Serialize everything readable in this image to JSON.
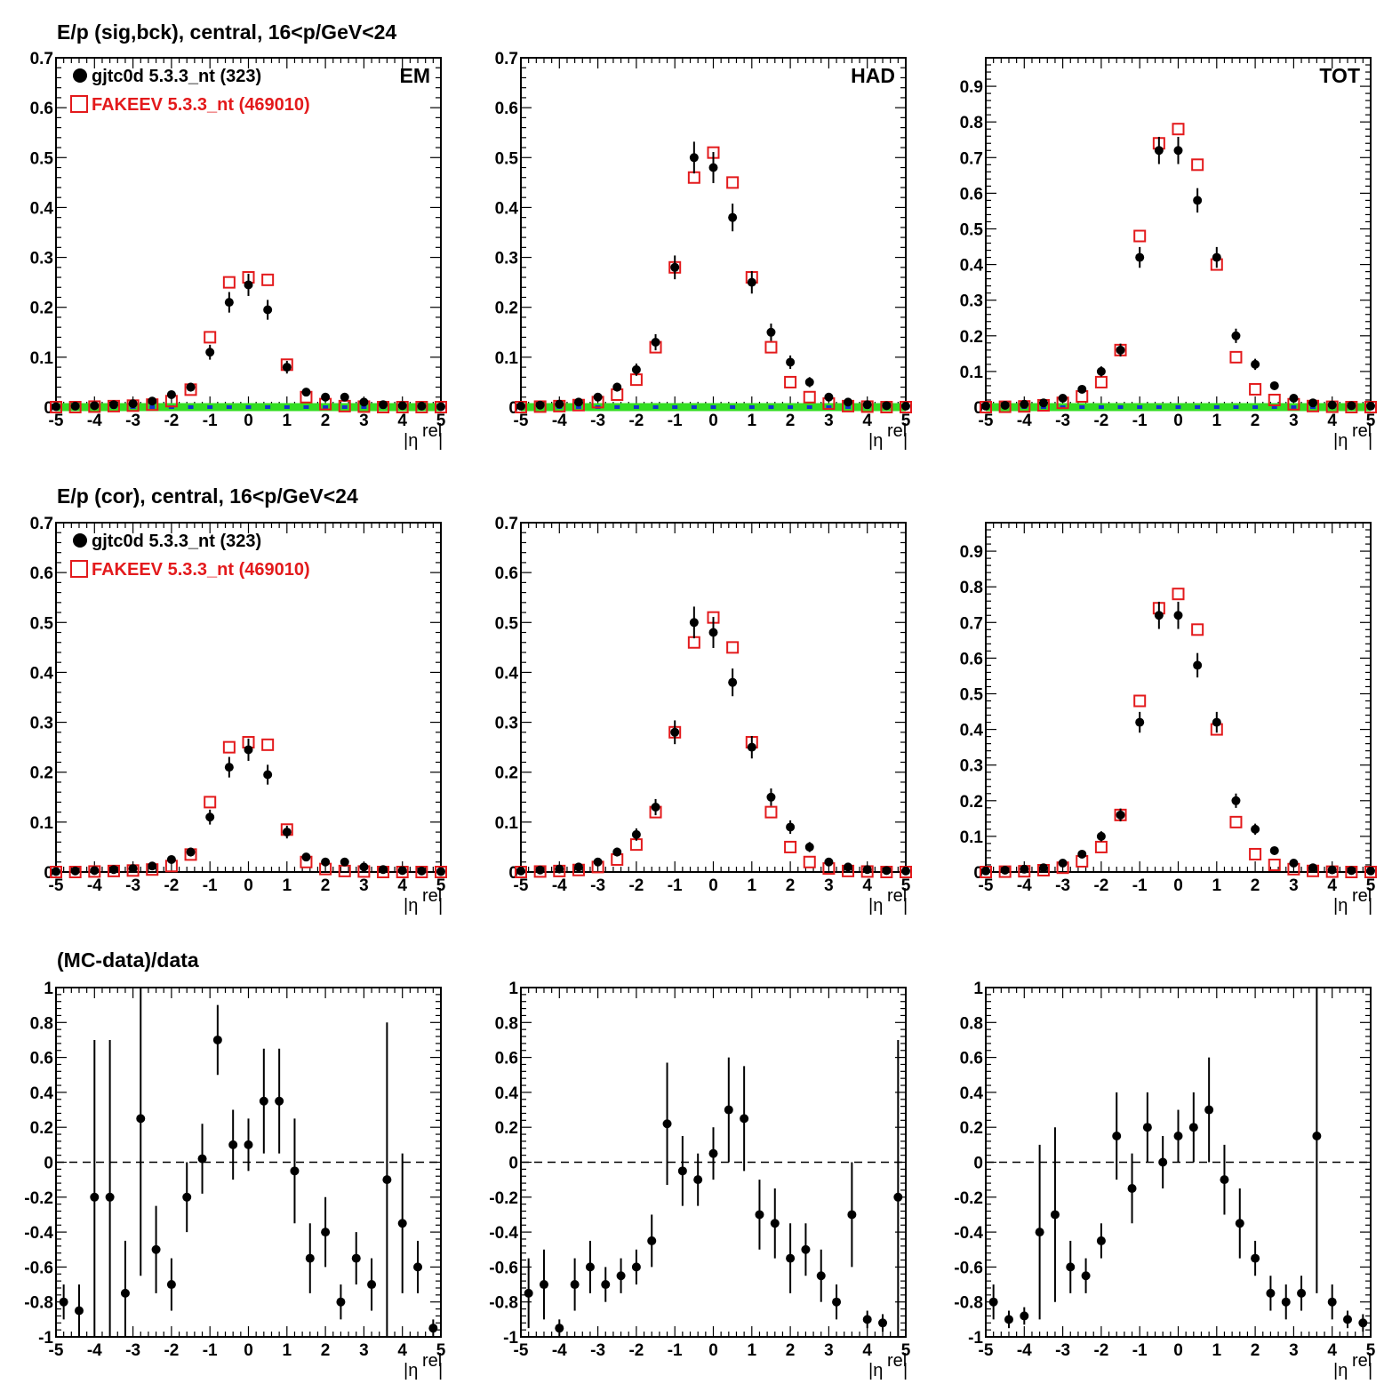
{
  "rows": [
    {
      "title": "E/p (sig,bck), central, 16<p/GeV<24"
    },
    {
      "title": "E/p (cor), central, 16<p/GeV<24"
    },
    {
      "title": "(MC-data)/data"
    }
  ],
  "legend": {
    "data_label": "gjtc0d 5.3.3_nt (323)",
    "mc_label": "FAKEEV 5.3.3_nt (469010)"
  },
  "panel_tags": [
    "EM",
    "HAD",
    "TOT"
  ],
  "x_axis": {
    "label_main": "|η",
    "label_sup": "rel",
    "label_end": "|",
    "range": [
      -5,
      5
    ],
    "ticks": [
      "-5",
      "-4",
      "-3",
      "-2",
      "-1",
      "0",
      "1",
      "2",
      "3",
      "4",
      "5"
    ]
  },
  "colors": {
    "data": "#000000",
    "mc": "#e31a1c",
    "background_band": "#33dd22",
    "background_points": "#1133cc",
    "zero_line": "#000000"
  },
  "chart_data": [
    {
      "type": "scatter",
      "row": 0,
      "tag": "EM",
      "xlim": [
        -5,
        5
      ],
      "ylim": [
        0,
        0.7
      ],
      "y_ticks": [
        "0",
        "0.1",
        "0.2",
        "0.3",
        "0.4",
        "0.5",
        "0.6",
        "0.7"
      ],
      "x": [
        -5,
        -4.5,
        -4,
        -3.5,
        -3,
        -2.5,
        -2,
        -1.5,
        -1,
        -0.5,
        0,
        0.5,
        1,
        1.5,
        2,
        2.5,
        3,
        3.5,
        4,
        4.5,
        5
      ],
      "series": [
        {
          "values": [
            0.001,
            0.002,
            0.003,
            0.005,
            0.007,
            0.012,
            0.025,
            0.04,
            0.11,
            0.21,
            0.245,
            0.195,
            0.08,
            0.03,
            0.02,
            0.02,
            0.01,
            0.005,
            0.003,
            0.002,
            0.001
          ]
        },
        {
          "values": [
            0.0,
            0.0,
            0.001,
            0.002,
            0.003,
            0.005,
            0.012,
            0.035,
            0.14,
            0.25,
            0.26,
            0.255,
            0.085,
            0.02,
            0.006,
            0.002,
            0.001,
            0.0,
            0.0,
            0.0,
            0.0
          ]
        }
      ],
      "background": {
        "values": [
          0,
          0,
          0,
          0,
          0,
          0,
          0,
          0,
          0,
          0,
          0,
          0,
          0,
          0,
          0,
          0,
          0,
          0,
          0,
          0,
          0
        ]
      }
    },
    {
      "type": "scatter",
      "row": 0,
      "tag": "HAD",
      "xlim": [
        -5,
        5
      ],
      "ylim": [
        0,
        0.7
      ],
      "y_ticks": [
        "0",
        "0.1",
        "0.2",
        "0.3",
        "0.4",
        "0.5",
        "0.6",
        "0.7"
      ],
      "x": [
        -5,
        -4.5,
        -4,
        -3.5,
        -3,
        -2.5,
        -2,
        -1.5,
        -1,
        -0.5,
        0,
        0.5,
        1,
        1.5,
        2,
        2.5,
        3,
        3.5,
        4,
        4.5,
        5
      ],
      "series": [
        {
          "values": [
            0.002,
            0.004,
            0.006,
            0.01,
            0.02,
            0.04,
            0.075,
            0.13,
            0.28,
            0.5,
            0.48,
            0.38,
            0.25,
            0.15,
            0.09,
            0.05,
            0.02,
            0.01,
            0.005,
            0.003,
            0.002
          ]
        },
        {
          "values": [
            0.0,
            0.001,
            0.002,
            0.004,
            0.01,
            0.025,
            0.055,
            0.12,
            0.28,
            0.46,
            0.51,
            0.45,
            0.26,
            0.12,
            0.05,
            0.02,
            0.007,
            0.002,
            0.001,
            0.0,
            0.0
          ]
        }
      ],
      "background": {
        "values": [
          0,
          0,
          0,
          0,
          0,
          0,
          0,
          0,
          0,
          0,
          0,
          0,
          0,
          0,
          0,
          0,
          0,
          0,
          0,
          0,
          0
        ]
      }
    },
    {
      "type": "scatter",
      "row": 0,
      "tag": "TOT",
      "xlim": [
        -5,
        5
      ],
      "ylim": [
        0,
        0.98
      ],
      "y_ticks": [
        "0",
        "0.1",
        "0.2",
        "0.3",
        "0.4",
        "0.5",
        "0.6",
        "0.7",
        "0.8",
        "0.9"
      ],
      "x": [
        -5,
        -4.5,
        -4,
        -3.5,
        -3,
        -2.5,
        -2,
        -1.5,
        -1,
        -0.5,
        0,
        0.5,
        1,
        1.5,
        2,
        2.5,
        3,
        3.5,
        4,
        4.5,
        5
      ],
      "series": [
        {
          "values": [
            0.003,
            0.005,
            0.008,
            0.012,
            0.025,
            0.05,
            0.1,
            0.16,
            0.42,
            0.72,
            0.72,
            0.58,
            0.42,
            0.2,
            0.12,
            0.06,
            0.025,
            0.012,
            0.006,
            0.004,
            0.003
          ]
        },
        {
          "values": [
            0.0,
            0.001,
            0.002,
            0.005,
            0.012,
            0.03,
            0.07,
            0.16,
            0.48,
            0.74,
            0.78,
            0.68,
            0.4,
            0.14,
            0.05,
            0.02,
            0.008,
            0.003,
            0.001,
            0.0,
            0.0
          ]
        }
      ],
      "background": {
        "values": [
          0,
          0,
          0,
          0,
          0,
          0,
          0,
          0,
          0,
          0,
          0,
          0,
          0,
          0,
          0,
          0,
          0,
          0,
          0,
          0,
          0
        ]
      }
    },
    {
      "type": "scatter",
      "row": 1,
      "tag": "",
      "xlim": [
        -5,
        5
      ],
      "ylim": [
        0,
        0.7
      ],
      "y_ticks": [
        "0",
        "0.1",
        "0.2",
        "0.3",
        "0.4",
        "0.5",
        "0.6",
        "0.7"
      ],
      "x": [
        -5,
        -4.5,
        -4,
        -3.5,
        -3,
        -2.5,
        -2,
        -1.5,
        -1,
        -0.5,
        0,
        0.5,
        1,
        1.5,
        2,
        2.5,
        3,
        3.5,
        4,
        4.5,
        5
      ],
      "series": [
        {
          "values": [
            0.001,
            0.002,
            0.003,
            0.005,
            0.007,
            0.012,
            0.025,
            0.04,
            0.11,
            0.21,
            0.245,
            0.195,
            0.08,
            0.03,
            0.02,
            0.02,
            0.01,
            0.005,
            0.003,
            0.002,
            0.001
          ]
        },
        {
          "values": [
            0.0,
            0.0,
            0.001,
            0.002,
            0.003,
            0.005,
            0.012,
            0.035,
            0.14,
            0.25,
            0.26,
            0.255,
            0.085,
            0.02,
            0.006,
            0.002,
            0.001,
            0.0,
            0.0,
            0.0,
            0.0
          ]
        }
      ]
    },
    {
      "type": "scatter",
      "row": 1,
      "tag": "",
      "xlim": [
        -5,
        5
      ],
      "ylim": [
        0,
        0.7
      ],
      "y_ticks": [
        "0",
        "0.1",
        "0.2",
        "0.3",
        "0.4",
        "0.5",
        "0.6",
        "0.7"
      ],
      "x": [
        -5,
        -4.5,
        -4,
        -3.5,
        -3,
        -2.5,
        -2,
        -1.5,
        -1,
        -0.5,
        0,
        0.5,
        1,
        1.5,
        2,
        2.5,
        3,
        3.5,
        4,
        4.5,
        5
      ],
      "series": [
        {
          "values": [
            0.002,
            0.004,
            0.006,
            0.01,
            0.02,
            0.04,
            0.075,
            0.13,
            0.28,
            0.5,
            0.48,
            0.38,
            0.25,
            0.15,
            0.09,
            0.05,
            0.02,
            0.01,
            0.005,
            0.003,
            0.002
          ]
        },
        {
          "values": [
            0.0,
            0.001,
            0.002,
            0.004,
            0.01,
            0.025,
            0.055,
            0.12,
            0.28,
            0.46,
            0.51,
            0.45,
            0.26,
            0.12,
            0.05,
            0.02,
            0.007,
            0.002,
            0.001,
            0.0,
            0.0
          ]
        }
      ]
    },
    {
      "type": "scatter",
      "row": 1,
      "tag": "",
      "xlim": [
        -5,
        5
      ],
      "ylim": [
        0,
        0.98
      ],
      "y_ticks": [
        "0",
        "0.1",
        "0.2",
        "0.3",
        "0.4",
        "0.5",
        "0.6",
        "0.7",
        "0.8",
        "0.9"
      ],
      "x": [
        -5,
        -4.5,
        -4,
        -3.5,
        -3,
        -2.5,
        -2,
        -1.5,
        -1,
        -0.5,
        0,
        0.5,
        1,
        1.5,
        2,
        2.5,
        3,
        3.5,
        4,
        4.5,
        5
      ],
      "series": [
        {
          "values": [
            0.003,
            0.005,
            0.008,
            0.012,
            0.025,
            0.05,
            0.1,
            0.16,
            0.42,
            0.72,
            0.72,
            0.58,
            0.42,
            0.2,
            0.12,
            0.06,
            0.025,
            0.012,
            0.006,
            0.004,
            0.003
          ]
        },
        {
          "values": [
            0.0,
            0.001,
            0.002,
            0.005,
            0.012,
            0.03,
            0.07,
            0.16,
            0.48,
            0.74,
            0.78,
            0.68,
            0.4,
            0.14,
            0.05,
            0.02,
            0.008,
            0.003,
            0.001,
            0.0,
            0.0
          ]
        }
      ]
    },
    {
      "type": "scatter",
      "row": 2,
      "tag": "",
      "xlim": [
        -5,
        5
      ],
      "ylim": [
        -1,
        1
      ],
      "y_ticks": [
        "-1",
        "-0.8",
        "-0.6",
        "-0.4",
        "-0.2",
        "0",
        "0.2",
        "0.4",
        "0.6",
        "0.8",
        "1"
      ],
      "x": [
        -4.8,
        -4.4,
        -4,
        -3.6,
        -3.2,
        -2.8,
        -2.4,
        -2,
        -1.6,
        -1.2,
        -0.8,
        -0.4,
        0,
        0.4,
        0.8,
        1.2,
        1.6,
        2,
        2.4,
        2.8,
        3.2,
        3.6,
        4,
        4.4,
        4.8
      ],
      "series": [
        {
          "values": [
            -0.8,
            -0.85,
            -0.2,
            -0.2,
            -0.75,
            0.25,
            -0.5,
            -0.7,
            -0.2,
            0.02,
            0.7,
            0.1,
            0.1,
            0.35,
            0.35,
            -0.05,
            -0.55,
            -0.4,
            -0.8,
            -0.55,
            -0.7,
            -0.1,
            -0.35,
            -0.6,
            -0.95
          ],
          "err": [
            0.1,
            0.15,
            0.9,
            0.9,
            0.3,
            0.9,
            0.25,
            0.15,
            0.2,
            0.2,
            0.2,
            0.2,
            0.15,
            0.3,
            0.3,
            0.3,
            0.2,
            0.2,
            0.1,
            0.15,
            0.15,
            0.9,
            0.4,
            0.15,
            0.05
          ]
        }
      ]
    },
    {
      "type": "scatter",
      "row": 2,
      "tag": "",
      "xlim": [
        -5,
        5
      ],
      "ylim": [
        -1,
        1
      ],
      "y_ticks": [
        "-1",
        "-0.8",
        "-0.6",
        "-0.4",
        "-0.2",
        "0",
        "0.2",
        "0.4",
        "0.6",
        "0.8",
        "1"
      ],
      "x": [
        -4.8,
        -4.4,
        -4,
        -3.6,
        -3.2,
        -2.8,
        -2.4,
        -2,
        -1.6,
        -1.2,
        -0.8,
        -0.4,
        0,
        0.4,
        0.8,
        1.2,
        1.6,
        2,
        2.4,
        2.8,
        3.2,
        3.6,
        4,
        4.4,
        4.8
      ],
      "series": [
        {
          "values": [
            -0.75,
            -0.7,
            -0.95,
            -0.7,
            -0.6,
            -0.7,
            -0.65,
            -0.6,
            -0.45,
            0.22,
            -0.05,
            -0.1,
            0.05,
            0.3,
            0.25,
            -0.3,
            -0.35,
            -0.55,
            -0.5,
            -0.65,
            -0.8,
            -0.3,
            -0.9,
            -0.92,
            -0.2
          ],
          "err": [
            0.2,
            0.2,
            0.05,
            0.15,
            0.15,
            0.1,
            0.1,
            0.1,
            0.15,
            0.35,
            0.2,
            0.15,
            0.15,
            0.3,
            0.3,
            0.2,
            0.2,
            0.2,
            0.15,
            0.15,
            0.1,
            0.3,
            0.05,
            0.05,
            0.9
          ]
        }
      ]
    },
    {
      "type": "scatter",
      "row": 2,
      "tag": "",
      "xlim": [
        -5,
        5
      ],
      "ylim": [
        -1,
        1
      ],
      "y_ticks": [
        "-1",
        "-0.8",
        "-0.6",
        "-0.4",
        "-0.2",
        "0",
        "0.2",
        "0.4",
        "0.6",
        "0.8",
        "1"
      ],
      "x": [
        -4.8,
        -4.4,
        -4,
        -3.6,
        -3.2,
        -2.8,
        -2.4,
        -2,
        -1.6,
        -1.2,
        -0.8,
        -0.4,
        0,
        0.4,
        0.8,
        1.2,
        1.6,
        2,
        2.4,
        2.8,
        3.2,
        3.6,
        4,
        4.4,
        4.8
      ],
      "series": [
        {
          "values": [
            -0.8,
            -0.9,
            -0.88,
            -0.4,
            -0.3,
            -0.6,
            -0.65,
            -0.45,
            0.15,
            -0.15,
            0.2,
            0.0,
            0.15,
            0.2,
            0.3,
            -0.1,
            -0.35,
            -0.55,
            -0.75,
            -0.8,
            -0.75,
            0.15,
            -0.8,
            -0.9,
            -0.92
          ],
          "err": [
            0.1,
            0.05,
            0.05,
            0.5,
            0.5,
            0.15,
            0.1,
            0.1,
            0.25,
            0.2,
            0.2,
            0.15,
            0.15,
            0.2,
            0.3,
            0.2,
            0.2,
            0.1,
            0.1,
            0.1,
            0.1,
            0.9,
            0.1,
            0.05,
            0.05
          ]
        }
      ]
    }
  ]
}
